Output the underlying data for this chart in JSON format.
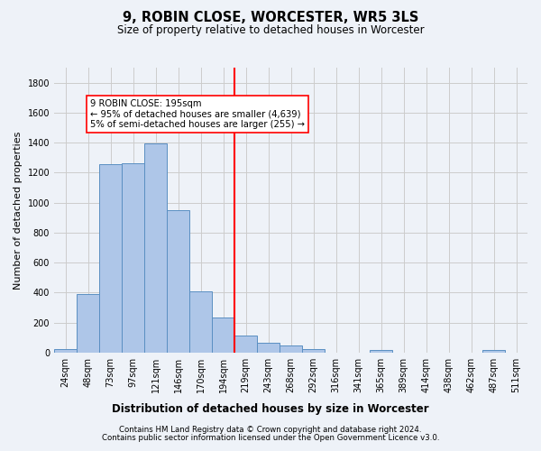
{
  "title": "9, ROBIN CLOSE, WORCESTER, WR5 3LS",
  "subtitle": "Size of property relative to detached houses in Worcester",
  "xlabel": "Distribution of detached houses by size in Worcester",
  "ylabel": "Number of detached properties",
  "bar_color": "#aec6e8",
  "bar_edge_color": "#5a8fc2",
  "vline_color": "red",
  "property_size": 195,
  "annotation_title": "9 ROBIN CLOSE: 195sqm",
  "annotation_line1": "← 95% of detached houses are smaller (4,639)",
  "annotation_line2": "5% of semi-detached houses are larger (255) →",
  "bin_labels": [
    "24sqm",
    "48sqm",
    "73sqm",
    "97sqm",
    "121sqm",
    "146sqm",
    "170sqm",
    "194sqm",
    "219sqm",
    "243sqm",
    "268sqm",
    "292sqm",
    "316sqm",
    "341sqm",
    "365sqm",
    "389sqm",
    "414sqm",
    "438sqm",
    "462sqm",
    "487sqm",
    "511sqm"
  ],
  "values": [
    25,
    390,
    1255,
    1260,
    1395,
    950,
    410,
    235,
    115,
    65,
    45,
    20,
    0,
    0,
    18,
    0,
    0,
    0,
    0,
    18,
    0
  ],
  "vline_bin_index": 7,
  "ylim": [
    0,
    1900
  ],
  "yticks": [
    0,
    200,
    400,
    600,
    800,
    1000,
    1200,
    1400,
    1600,
    1800
  ],
  "footnote1": "Contains HM Land Registry data © Crown copyright and database right 2024.",
  "footnote2": "Contains public sector information licensed under the Open Government Licence v3.0.",
  "background_color": "#eef2f8",
  "grid_color": "#cccccc",
  "ylabel_fontsize": 8,
  "tick_fontsize": 7,
  "title_fontsize": 10.5,
  "subtitle_fontsize": 8.5,
  "xlabel_fontsize": 8.5,
  "footnote_fontsize": 6.2
}
